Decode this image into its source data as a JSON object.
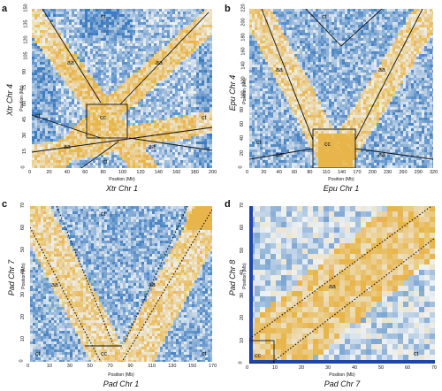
{
  "panels": [
    {
      "letter": "a",
      "ylabel": "Xtr Chr 4",
      "ysub": "Position (Mb)",
      "xlabel": "Xtr Chr 1",
      "xsub": "Position (Mb)",
      "xticks": [
        "0",
        "20",
        "40",
        "60",
        "80",
        "100",
        "120",
        "140",
        "160",
        "180",
        "200"
      ],
      "yticks": [
        "0",
        "15",
        "30",
        "45",
        "60",
        "75",
        "90",
        "105",
        "120",
        "135",
        "150"
      ],
      "regions": [
        "ct",
        "aa",
        "aa",
        "ct",
        "cc",
        "ct",
        "aa",
        "aa",
        "ct"
      ],
      "lines": "solid",
      "colors": {
        "blue": "#3e7cc0",
        "gold": "#e8b54a",
        "light": "#eef2f4"
      }
    },
    {
      "letter": "b",
      "ylabel": "Epu Chr 4",
      "ysub": "Position (Mb)",
      "xlabel": "Epu Chr 1",
      "xsub": "Position (Mb)",
      "xticks": [
        "0",
        "20",
        "40",
        "60",
        "80",
        "110",
        "140",
        "170",
        "200",
        "230",
        "260",
        "290",
        "320"
      ],
      "yticks": [
        "0",
        "20",
        "40",
        "60",
        "80",
        "100",
        "120",
        "140",
        "160",
        "180",
        "200",
        "220"
      ],
      "regions": [
        "ct",
        "aa",
        "aa",
        "ct",
        "cc",
        "aa",
        "aa"
      ],
      "lines": "solid"
    },
    {
      "letter": "c",
      "ylabel": "Pad Chr 7",
      "ysub": "Position (Mb)",
      "xlabel": "Pad Chr 1",
      "xsub": "Position (Mb)",
      "xticks": [
        "0",
        "10",
        "30",
        "50",
        "70",
        "90",
        "110",
        "130",
        "150",
        "170"
      ],
      "yticks": [
        "0",
        "10",
        "20",
        "30",
        "40",
        "50",
        "60",
        "70"
      ],
      "regions": [
        "ct",
        "aa",
        "aa",
        "ct",
        "cc",
        "ct"
      ],
      "lines": "dotted"
    },
    {
      "letter": "d",
      "ylabel": "Pad Chr 8",
      "ysub": "Position (Mb)",
      "xlabel": "Pad Chr 7",
      "xsub": "Position (Mb)",
      "xticks": [
        "0",
        "10",
        "20",
        "30",
        "40",
        "50",
        "60",
        "70"
      ],
      "yticks": [
        "0",
        "10",
        "20",
        "30",
        "40",
        "50",
        "60",
        "70"
      ],
      "regions": [
        "aa",
        "cc",
        "ct"
      ],
      "lines": "dotted"
    }
  ]
}
